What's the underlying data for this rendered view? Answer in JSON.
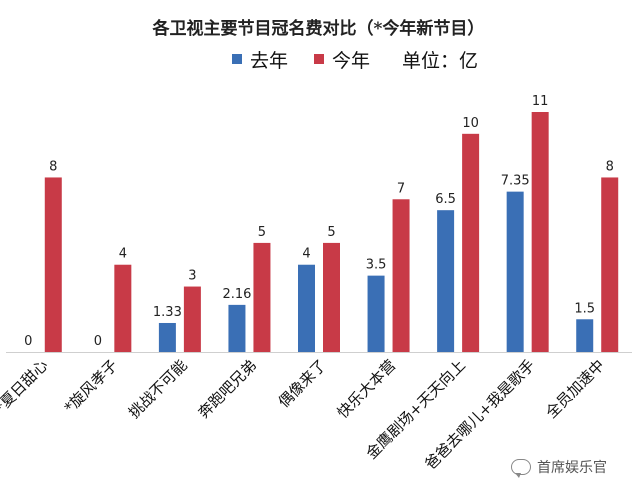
{
  "chart_data": {
    "type": "bar",
    "title": "各卫视主要节目冠名费对比（*今年新节目）",
    "unit_label": "单位：亿",
    "categories": [
      "*夏日甜心",
      "*旋风孝子",
      "挑战不可能",
      "奔跑吧兄弟",
      "偶像来了",
      "快乐大本营",
      "金鹰剧场+天天向上",
      "爸爸去哪儿+我是歌手",
      "全员加速中"
    ],
    "series": [
      {
        "name": "去年",
        "color": "#3a6fb5",
        "values": [
          0,
          0,
          1.33,
          2.16,
          4,
          3.5,
          6.5,
          7.35,
          1.5
        ],
        "labels": [
          "0",
          "0",
          "1.33",
          "2.16",
          "4",
          "3.5",
          "6.5",
          "7.35",
          "1.5"
        ]
      },
      {
        "name": "今年",
        "color": "#c83a47",
        "values": [
          8,
          4,
          3,
          5,
          5,
          7,
          10,
          11,
          8
        ],
        "labels": [
          "8",
          "4",
          "3",
          "5",
          "5",
          "7",
          "10",
          "11",
          "8"
        ]
      }
    ],
    "ylim": [
      0,
      12
    ],
    "grid": false,
    "legend_position": "top"
  },
  "watermark": {
    "icon": "wechat-bubble-icon",
    "text": "首席娱乐官"
  }
}
